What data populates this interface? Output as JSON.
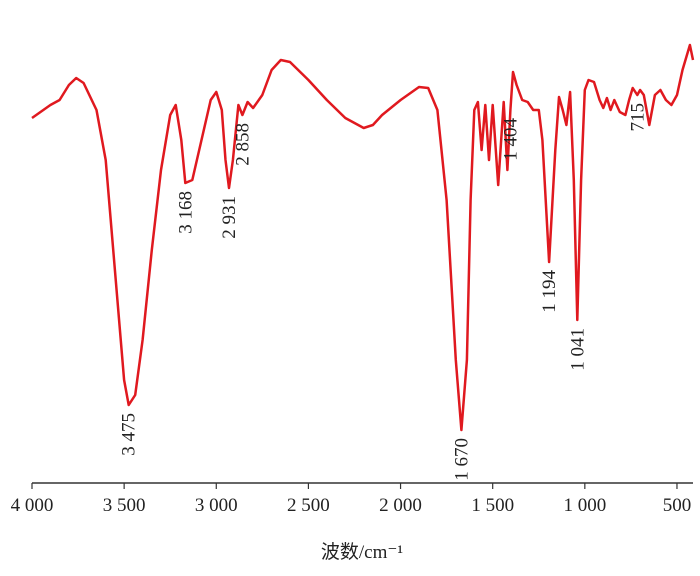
{
  "chart_data": {
    "type": "line",
    "xlabel": "波数/cm⁻¹",
    "x": [
      4000,
      3900,
      3850,
      3800,
      3760,
      3720,
      3650,
      3600,
      3550,
      3500,
      3475,
      3440,
      3400,
      3350,
      3300,
      3250,
      3220,
      3190,
      3168,
      3130,
      3080,
      3030,
      3000,
      2970,
      2950,
      2931,
      2910,
      2880,
      2858,
      2830,
      2800,
      2750,
      2700,
      2650,
      2600,
      2500,
      2400,
      2300,
      2200,
      2150,
      2100,
      2000,
      1900,
      1850,
      1800,
      1750,
      1700,
      1670,
      1640,
      1620,
      1600,
      1580,
      1560,
      1540,
      1520,
      1500,
      1470,
      1440,
      1420,
      1404,
      1390,
      1370,
      1340,
      1310,
      1280,
      1250,
      1230,
      1194,
      1160,
      1140,
      1120,
      1100,
      1080,
      1060,
      1041,
      1020,
      1000,
      980,
      950,
      920,
      900,
      880,
      860,
      840,
      810,
      780,
      760,
      740,
      715,
      700,
      680,
      650,
      620,
      590,
      560,
      530,
      500,
      470,
      430,
      413
    ],
    "series": [
      {
        "color": "#e0191f",
        "values": [
          365,
          378,
          383,
          398,
          405,
          400,
          373,
          323,
          213,
          103,
          78,
          88,
          143,
          233,
          313,
          368,
          378,
          343,
          300,
          303,
          343,
          383,
          391,
          373,
          323,
          295,
          323,
          378,
          368,
          381,
          375,
          388,
          413,
          423,
          421,
          403,
          383,
          365,
          355,
          358,
          368,
          383,
          396,
          395,
          373,
          283,
          123,
          53,
          123,
          283,
          373,
          381,
          333,
          378,
          323,
          378,
          298,
          381,
          313,
          373,
          411,
          398,
          383,
          381,
          373,
          373,
          343,
          221,
          333,
          386,
          373,
          358,
          391,
          303,
          163,
          303,
          393,
          403,
          401,
          383,
          375,
          385,
          373,
          383,
          371,
          368,
          383,
          395,
          388,
          393,
          388,
          358,
          388,
          393,
          383,
          378,
          388,
          413,
          438,
          423
        ]
      }
    ],
    "xlim": [
      4000,
      413
    ],
    "ylim": [
      0,
      483
    ],
    "xticks": [
      {
        "value": 4000,
        "label": "4 000"
      },
      {
        "value": 3500,
        "label": "3 500"
      },
      {
        "value": 3000,
        "label": "3 000"
      },
      {
        "value": 2500,
        "label": "2 500"
      },
      {
        "value": 2000,
        "label": "2 000"
      },
      {
        "value": 1500,
        "label": "1 500"
      },
      {
        "value": 1000,
        "label": "1 000"
      },
      500
    ],
    "annotations": [
      {
        "x": 3475,
        "label": "3 475"
      },
      {
        "x": 3168,
        "label": "3 168"
      },
      {
        "x": 2931,
        "label": "2 931"
      },
      {
        "x": 2858,
        "label": "2 858"
      },
      {
        "x": 1670,
        "label": "1 670"
      },
      {
        "x": 1404,
        "label": "1 404"
      },
      {
        "x": 1194,
        "label": "1 194"
      },
      {
        "x": 1041,
        "label": "1 041"
      },
      {
        "x": 715,
        "label": "715"
      }
    ]
  }
}
